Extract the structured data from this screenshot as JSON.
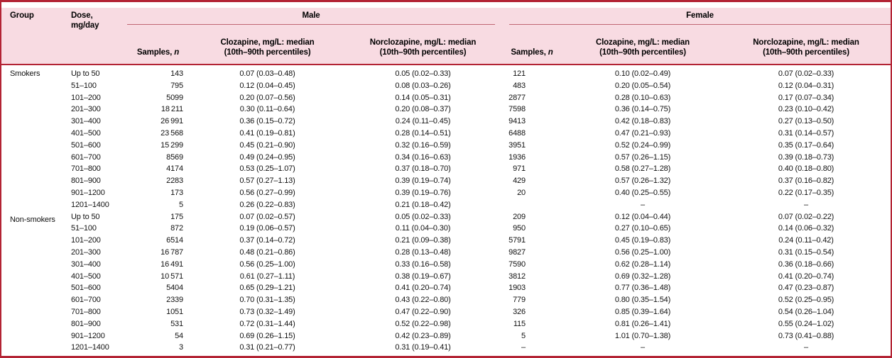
{
  "colors": {
    "header_background": "#f8dbe2",
    "border_red": "#b32334",
    "spanner_rule_red": "#c06673",
    "body_background": "#ffffff",
    "text": "#000000"
  },
  "table": {
    "spanners": {
      "male": "Male",
      "female": "Female"
    },
    "headers": {
      "group": "Group",
      "dose_line1": "Dose,",
      "dose_line2": "mg/day",
      "samples_prefix": "Samples, ",
      "samples_n": "n",
      "clozapine_line1": "Clozapine, mg/L: median",
      "clozapine_line2": "(10th–90th percentiles)",
      "norclozapine_line1": "Norclozapine, mg/L: median",
      "norclozapine_line2": "(10th–90th percentiles)"
    },
    "groups": [
      {
        "label": "Smokers",
        "rows": [
          {
            "dose": "Up to 50",
            "m_n": "143",
            "m_cloz": "0.07 (0.03–0.48)",
            "m_ncloz": "0.05 (0.02–0.33)",
            "f_n": "121",
            "f_cloz": "0.10 (0.02–0.49)",
            "f_ncloz": "0.07 (0.02–0.33)"
          },
          {
            "dose": "51–100",
            "m_n": "795",
            "m_cloz": "0.12 (0.04–0.45)",
            "m_ncloz": "0.08 (0.03–0.26)",
            "f_n": "483",
            "f_cloz": "0.20 (0.05–0.54)",
            "f_ncloz": "0.12 (0.04–0.31)"
          },
          {
            "dose": "101–200",
            "m_n": "5099",
            "m_cloz": "0.20 (0.07–0.56)",
            "m_ncloz": "0.14 (0.05–0.31)",
            "f_n": "2877",
            "f_cloz": "0.28 (0.10–0.63)",
            "f_ncloz": "0.17 (0.07–0.34)"
          },
          {
            "dose": "201–300",
            "m_n": "18 211",
            "m_cloz": "0.30 (0.11–0.64)",
            "m_ncloz": "0.20 (0.08–0.37)",
            "f_n": "7598",
            "f_cloz": "0.36 (0.14–0.75)",
            "f_ncloz": "0.23 (0.10–0.42)"
          },
          {
            "dose": "301–400",
            "m_n": "26 991",
            "m_cloz": "0.36 (0.15–0.72)",
            "m_ncloz": "0.24 (0.11–0.45)",
            "f_n": "9413",
            "f_cloz": "0.42 (0.18–0.83)",
            "f_ncloz": "0.27 (0.13–0.50)"
          },
          {
            "dose": "401–500",
            "m_n": "23 568",
            "m_cloz": "0.41 (0.19–0.81)",
            "m_ncloz": "0.28 (0.14–0.51)",
            "f_n": "6488",
            "f_cloz": "0.47 (0.21–0.93)",
            "f_ncloz": "0.31 (0.14–0.57)"
          },
          {
            "dose": "501–600",
            "m_n": "15 299",
            "m_cloz": "0.45 (0.21–0.90)",
            "m_ncloz": "0.32 (0.16–0.59)",
            "f_n": "3951",
            "f_cloz": "0.52 (0.24–0.99)",
            "f_ncloz": "0.35 (0.17–0.64)"
          },
          {
            "dose": "601–700",
            "m_n": "8569",
            "m_cloz": "0.49 (0.24–0.95)",
            "m_ncloz": "0.34 (0.16–0.63)",
            "f_n": "1936",
            "f_cloz": "0.57 (0.26–1.15)",
            "f_ncloz": "0.39 (0.18–0.73)"
          },
          {
            "dose": "701–800",
            "m_n": "4174",
            "m_cloz": "0.53 (0.25–1.07)",
            "m_ncloz": "0.37 (0.18–0.70)",
            "f_n": "971",
            "f_cloz": "0.58 (0.27–1.28)",
            "f_ncloz": "0.40 (0.18–0.80)"
          },
          {
            "dose": "801–900",
            "m_n": "2283",
            "m_cloz": "0.57 (0.27–1.13)",
            "m_ncloz": "0.39 (0.19–0.74)",
            "f_n": "429",
            "f_cloz": "0.57 (0.26–1.32)",
            "f_ncloz": "0.37 (0.16–0.82)"
          },
          {
            "dose": "901–1200",
            "m_n": "173",
            "m_cloz": "0.56 (0.27–0.99)",
            "m_ncloz": "0.39 (0.19–0.76)",
            "f_n": "20",
            "f_cloz": "0.40 (0.25–0.55)",
            "f_ncloz": "0.22 (0.17–0.35)"
          },
          {
            "dose": "1201–1400",
            "m_n": "5",
            "m_cloz": "0.26 (0.22–0.83)",
            "m_ncloz": "0.21 (0.18–0.42)",
            "f_n": "",
            "f_cloz": "–",
            "f_ncloz": "–"
          }
        ]
      },
      {
        "label": "Non-smokers",
        "rows": [
          {
            "dose": "Up to 50",
            "m_n": "175",
            "m_cloz": "0.07 (0.02–0.57)",
            "m_ncloz": "0.05 (0.02–0.33)",
            "f_n": "209",
            "f_cloz": "0.12 (0.04–0.44)",
            "f_ncloz": "0.07 (0.02–0.22)"
          },
          {
            "dose": "51–100",
            "m_n": "872",
            "m_cloz": "0.19 (0.06–0.57)",
            "m_ncloz": "0.11 (0.04–0.30)",
            "f_n": "950",
            "f_cloz": "0.27 (0.10–0.65)",
            "f_ncloz": "0.14 (0.06–0.32)"
          },
          {
            "dose": "101–200",
            "m_n": "6514",
            "m_cloz": "0.37 (0.14–0.72)",
            "m_ncloz": "0.21 (0.09–0.38)",
            "f_n": "5791",
            "f_cloz": "0.45 (0.19–0.83)",
            "f_ncloz": "0.24 (0.11–0.42)"
          },
          {
            "dose": "201–300",
            "m_n": "16 787",
            "m_cloz": "0.48 (0.21–0.86)",
            "m_ncloz": "0.28 (0.13–0.48)",
            "f_n": "9827",
            "f_cloz": "0.56 (0.25–1.00)",
            "f_ncloz": "0.31 (0.15–0.54)"
          },
          {
            "dose": "301–400",
            "m_n": "16 491",
            "m_cloz": "0.56 (0.25–1.00)",
            "m_ncloz": "0.33 (0.16–0.58)",
            "f_n": "7590",
            "f_cloz": "0.62 (0.28–1.14)",
            "f_ncloz": "0.36 (0.18–0.66)"
          },
          {
            "dose": "401–500",
            "m_n": "10 571",
            "m_cloz": "0.61 (0.27–1.11)",
            "m_ncloz": "0.38 (0.19–0.67)",
            "f_n": "3812",
            "f_cloz": "0.69 (0.32–1.28)",
            "f_ncloz": "0.41 (0.20–0.74)"
          },
          {
            "dose": "501–600",
            "m_n": "5404",
            "m_cloz": "0.65 (0.29–1.21)",
            "m_ncloz": "0.41 (0.20–0.74)",
            "f_n": "1903",
            "f_cloz": "0.77 (0.36–1.48)",
            "f_ncloz": "0.47 (0.23–0.87)"
          },
          {
            "dose": "601–700",
            "m_n": "2339",
            "m_cloz": "0.70 (0.31–1.35)",
            "m_ncloz": "0.43 (0.22–0.80)",
            "f_n": "779",
            "f_cloz": "0.80 (0.35–1.54)",
            "f_ncloz": "0.52 (0.25–0.95)"
          },
          {
            "dose": "701–800",
            "m_n": "1051",
            "m_cloz": "0.73 (0.32–1.49)",
            "m_ncloz": "0.47 (0.22–0.90)",
            "f_n": "326",
            "f_cloz": "0.85 (0.39–1.64)",
            "f_ncloz": "0.54 (0.26–1.04)"
          },
          {
            "dose": "801–900",
            "m_n": "531",
            "m_cloz": "0.72 (0.31–1.44)",
            "m_ncloz": "0.52 (0.22–0.98)",
            "f_n": "115",
            "f_cloz": "0.81 (0.26–1.41)",
            "f_ncloz": "0.55 (0.24–1.02)"
          },
          {
            "dose": "901–1200",
            "m_n": "54",
            "m_cloz": "0.69 (0.26–1.15)",
            "m_ncloz": "0.42 (0.23–0.89)",
            "f_n": "5",
            "f_cloz": "1.01 (0.70–1.38)",
            "f_ncloz": "0.73 (0.41–0.88)"
          },
          {
            "dose": "1201–1400",
            "m_n": "3",
            "m_cloz": "0.31 (0.21–0.77)",
            "m_ncloz": "0.31 (0.19–0.41)",
            "f_n": "–",
            "f_cloz": "–",
            "f_ncloz": "–"
          }
        ]
      }
    ]
  }
}
